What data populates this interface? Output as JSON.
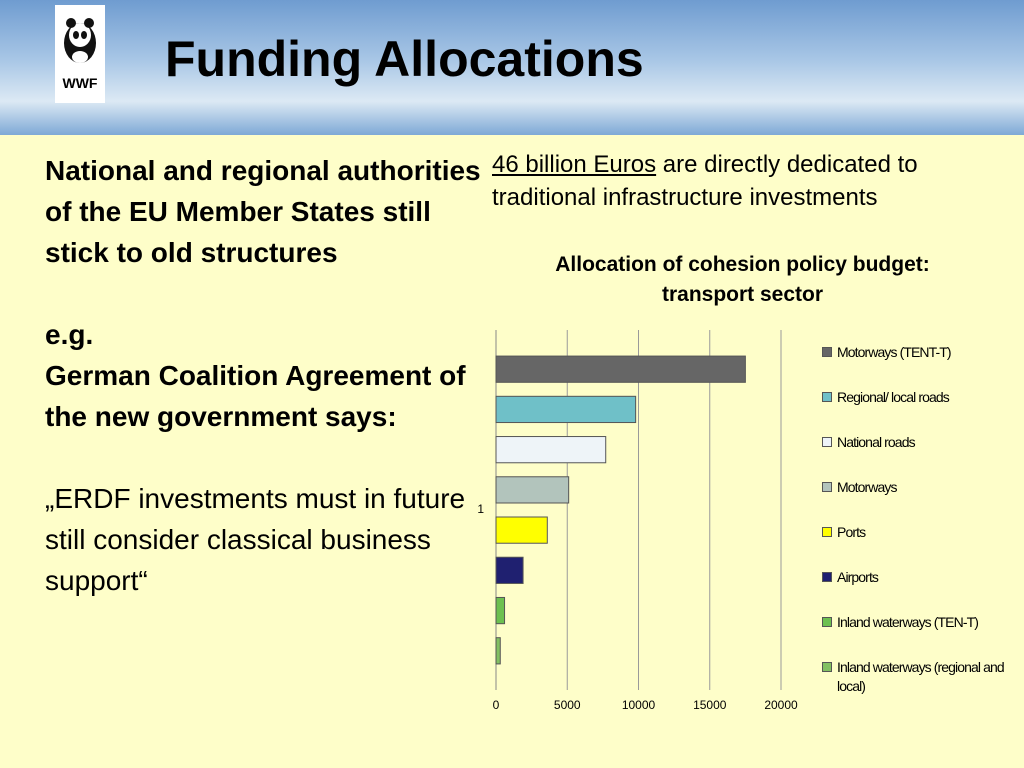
{
  "header": {
    "logo_text": "WWF",
    "title": "Funding Allocations"
  },
  "left_text": [
    "National and regional authorities of the EU Member States still stick to old structures",
    "e.g.",
    "German Coalition Agreement of the new government says:",
    "„ERDF investments must in future still consider classical business support“"
  ],
  "intro": {
    "link": "46 billion Euros",
    "text": "are directly dedicated to traditional infrastructure investments"
  },
  "chart_data": {
    "type": "bar",
    "orientation": "horizontal",
    "title": "Allocation of cohesion policy budget: transport sector",
    "categories": [
      "1"
    ],
    "series": [
      {
        "name": "Motorways (TENT-T)",
        "color": "#666666",
        "values": [
          17500
        ]
      },
      {
        "name": "Regional/ local roads",
        "color": "#6fc0c8",
        "values": [
          9800
        ]
      },
      {
        "name": "National roads",
        "color": "#eef4f8",
        "values": [
          7700
        ]
      },
      {
        "name": "Motorways",
        "color": "#b2c4bc",
        "values": [
          5100
        ]
      },
      {
        "name": "Ports",
        "color": "#ffff00",
        "values": [
          3600
        ]
      },
      {
        "name": "Airports",
        "color": "#1f2070",
        "values": [
          1900
        ]
      },
      {
        "name": "Inland waterways (TEN-T)",
        "color": "#6cc050",
        "values": [
          600
        ]
      },
      {
        "name": "Inland waterways (regional and local)",
        "color": "#82c062",
        "values": [
          300
        ]
      }
    ],
    "xlim": [
      0,
      20000
    ],
    "xticks": [
      0,
      5000,
      10000,
      15000,
      20000
    ],
    "grid": true,
    "legend": "right"
  }
}
